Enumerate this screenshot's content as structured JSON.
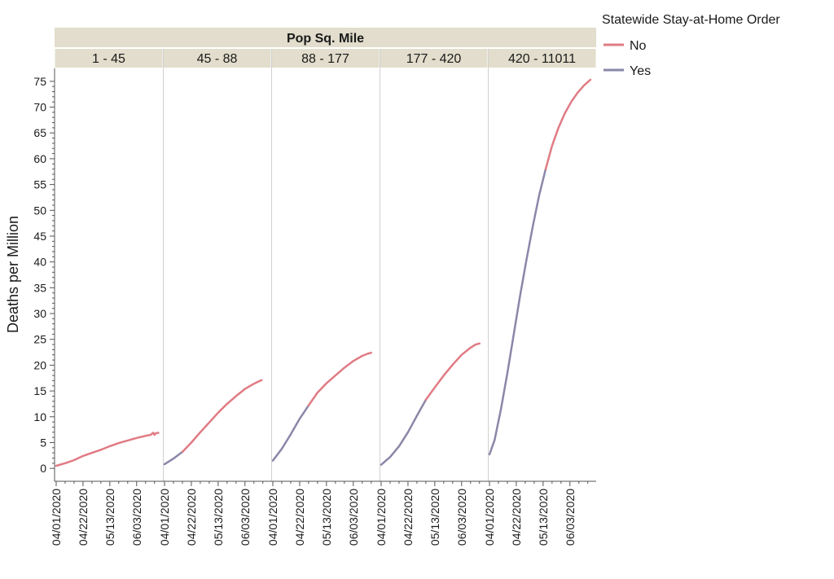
{
  "chart_data": {
    "type": "line",
    "facet_title": "Pop Sq. Mile",
    "ylabel": "Deaths per Million",
    "xlabel": "",
    "ylim": [
      -2.5,
      77.5
    ],
    "y_ticks": [
      0,
      5,
      10,
      15,
      20,
      25,
      30,
      35,
      40,
      45,
      50,
      55,
      60,
      65,
      70,
      75
    ],
    "x_range": [
      "2020-04-01",
      "2020-06-21"
    ],
    "x_ticks": [
      "04/01/2020",
      "04/22/2020",
      "05/13/2020",
      "06/03/2020"
    ],
    "x_tick_dates": [
      "2020-04-01",
      "2020-04-22",
      "2020-05-13",
      "2020-06-03"
    ],
    "grid": false,
    "legend": {
      "title": "Statewide Stay-at-Home Order",
      "position": "top-right",
      "entries": [
        {
          "label": "No",
          "color": "#e07b84"
        },
        {
          "label": "Yes",
          "color": "#8a87a8"
        }
      ]
    },
    "colors": {
      "No": "#e07b84",
      "Yes": "#8a87a8",
      "header_bg": "#e2ddcc",
      "axis": "#555555",
      "divider": "#d0d0d0"
    },
    "panels": [
      {
        "label": "1 - 45",
        "segments": [
          {
            "order": "No",
            "points": [
              [
                "2020-04-01",
                0.5
              ],
              [
                "2020-04-08",
                1.0
              ],
              [
                "2020-04-15",
                1.6
              ],
              [
                "2020-04-22",
                2.4
              ],
              [
                "2020-04-29",
                3.0
              ],
              [
                "2020-05-06",
                3.6
              ],
              [
                "2020-05-13",
                4.3
              ],
              [
                "2020-05-20",
                4.9
              ],
              [
                "2020-05-27",
                5.4
              ],
              [
                "2020-06-03",
                5.9
              ],
              [
                "2020-06-10",
                6.3
              ],
              [
                "2020-06-14",
                6.5
              ],
              [
                "2020-06-16",
                6.9
              ],
              [
                "2020-06-17",
                6.5
              ],
              [
                "2020-06-18",
                6.8
              ],
              [
                "2020-06-20",
                6.9
              ]
            ]
          }
        ]
      },
      {
        "label": "45 - 88",
        "segments": [
          {
            "order": "Yes",
            "points": [
              [
                "2020-04-01",
                0.8
              ],
              [
                "2020-04-08",
                1.9
              ],
              [
                "2020-04-15",
                3.2
              ]
            ]
          },
          {
            "order": "No",
            "points": [
              [
                "2020-04-15",
                3.2
              ],
              [
                "2020-04-22",
                5.0
              ],
              [
                "2020-04-29",
                7.0
              ],
              [
                "2020-05-06",
                8.9
              ],
              [
                "2020-05-13",
                10.8
              ],
              [
                "2020-05-20",
                12.5
              ],
              [
                "2020-05-27",
                14.0
              ],
              [
                "2020-06-03",
                15.4
              ],
              [
                "2020-06-10",
                16.4
              ],
              [
                "2020-06-14",
                16.9
              ],
              [
                "2020-06-16",
                17.1
              ]
            ]
          }
        ]
      },
      {
        "label": "88 - 177",
        "segments": [
          {
            "order": "Yes",
            "points": [
              [
                "2020-04-01",
                1.5
              ],
              [
                "2020-04-08",
                3.8
              ],
              [
                "2020-04-15",
                6.6
              ],
              [
                "2020-04-22",
                9.6
              ],
              [
                "2020-04-29",
                12.2
              ]
            ]
          },
          {
            "order": "No",
            "points": [
              [
                "2020-04-29",
                12.2
              ],
              [
                "2020-05-06",
                14.7
              ],
              [
                "2020-05-13",
                16.5
              ],
              [
                "2020-05-20",
                18.0
              ],
              [
                "2020-05-27",
                19.5
              ],
              [
                "2020-06-03",
                20.8
              ],
              [
                "2020-06-10",
                21.8
              ],
              [
                "2020-06-14",
                22.2
              ],
              [
                "2020-06-17",
                22.4
              ]
            ]
          }
        ]
      },
      {
        "label": "177 - 420",
        "segments": [
          {
            "order": "Yes",
            "points": [
              [
                "2020-04-01",
                0.7
              ],
              [
                "2020-04-08",
                2.2
              ],
              [
                "2020-04-15",
                4.3
              ],
              [
                "2020-04-22",
                7.0
              ],
              [
                "2020-04-29",
                10.2
              ],
              [
                "2020-05-06",
                13.3
              ]
            ]
          },
          {
            "order": "No",
            "points": [
              [
                "2020-05-06",
                13.3
              ],
              [
                "2020-05-13",
                15.7
              ],
              [
                "2020-05-20",
                18.0
              ],
              [
                "2020-05-27",
                20.1
              ],
              [
                "2020-06-03",
                22.0
              ],
              [
                "2020-06-10",
                23.4
              ],
              [
                "2020-06-14",
                24.0
              ],
              [
                "2020-06-17",
                24.2
              ]
            ]
          }
        ]
      },
      {
        "label": "420 - 11011",
        "segments": [
          {
            "order": "Yes",
            "points": [
              [
                "2020-04-01",
                2.7
              ],
              [
                "2020-04-05",
                5.5
              ],
              [
                "2020-04-10",
                11.5
              ],
              [
                "2020-04-15",
                18.5
              ],
              [
                "2020-04-20",
                26.0
              ],
              [
                "2020-04-25",
                33.5
              ],
              [
                "2020-04-30",
                40.5
              ],
              [
                "2020-05-05",
                47.0
              ],
              [
                "2020-05-10",
                53.0
              ],
              [
                "2020-05-15",
                58.0
              ]
            ]
          },
          {
            "order": "No",
            "points": [
              [
                "2020-05-15",
                58.0
              ],
              [
                "2020-05-20",
                62.5
              ],
              [
                "2020-05-25",
                66.0
              ],
              [
                "2020-05-30",
                68.8
              ],
              [
                "2020-06-04",
                71.0
              ],
              [
                "2020-06-09",
                72.8
              ],
              [
                "2020-06-14",
                74.2
              ],
              [
                "2020-06-19",
                75.3
              ]
            ]
          }
        ]
      }
    ]
  }
}
